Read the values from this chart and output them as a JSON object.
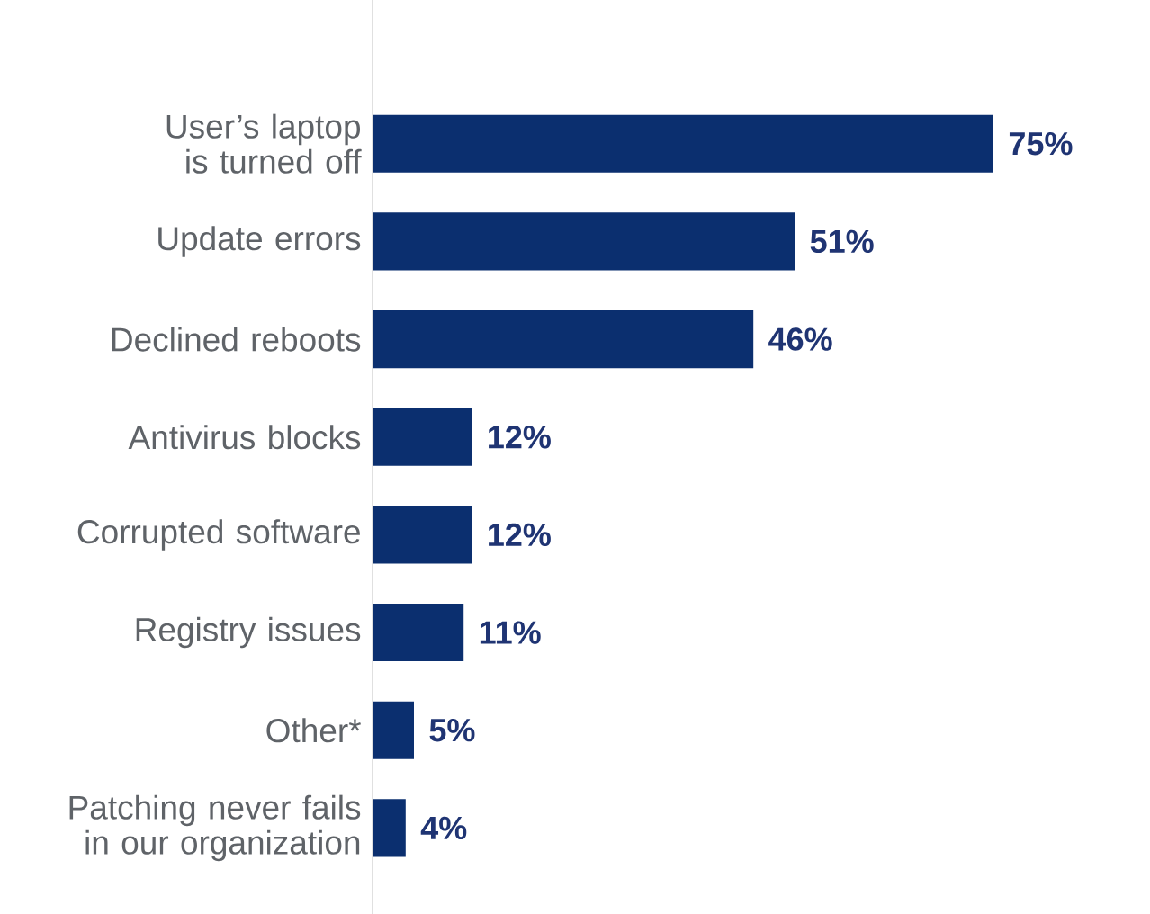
{
  "chart_data": {
    "type": "bar",
    "orientation": "horizontal",
    "categories": [
      "User’s laptop is turned off",
      "Update errors",
      "Declined reboots",
      "Antivirus blocks",
      "Corrupted software",
      "Registry issues",
      "Other*",
      "Patching never fails in our organization"
    ],
    "values": [
      75,
      51,
      46,
      12,
      12,
      11,
      5,
      4
    ],
    "value_labels": [
      "75%",
      "51%",
      "46%",
      "12%",
      "12%",
      "11%",
      "5%",
      "4%"
    ],
    "color": "#0b2f6f"
  }
}
